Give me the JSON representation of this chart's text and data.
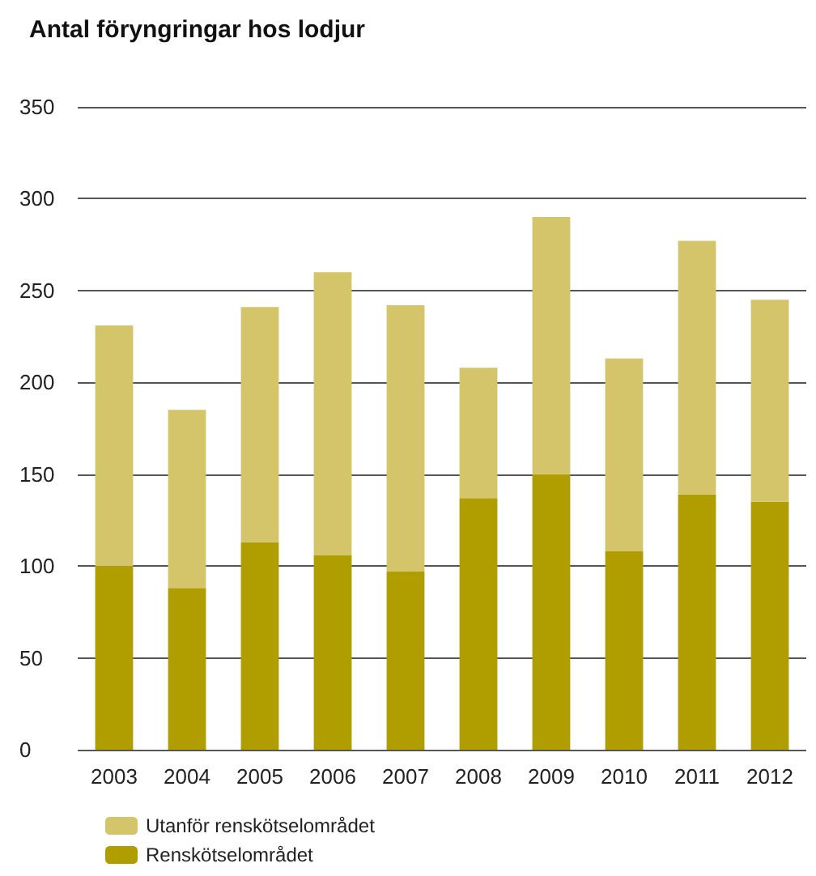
{
  "chart_data": {
    "type": "bar",
    "title": "Antal föryngringar hos lodjur",
    "categories": [
      "2003",
      "2004",
      "2005",
      "2006",
      "2007",
      "2008",
      "2009",
      "2010",
      "2011",
      "2012"
    ],
    "stacked": true,
    "series": [
      {
        "name": "Renskötselområdet",
        "color": "#b09e00",
        "values": [
          100,
          88,
          113,
          106,
          97,
          137,
          150,
          108,
          139,
          135
        ]
      },
      {
        "name": "Utanför renskötselområdet",
        "color": "#d4c46a",
        "values": [
          131,
          97,
          128,
          154,
          145,
          71,
          140,
          105,
          138,
          110
        ]
      }
    ],
    "ylim": [
      0,
      350
    ],
    "yticks": [
      0,
      50,
      100,
      150,
      200,
      250,
      300,
      350
    ],
    "grid": "y",
    "legend": "bottom left"
  }
}
